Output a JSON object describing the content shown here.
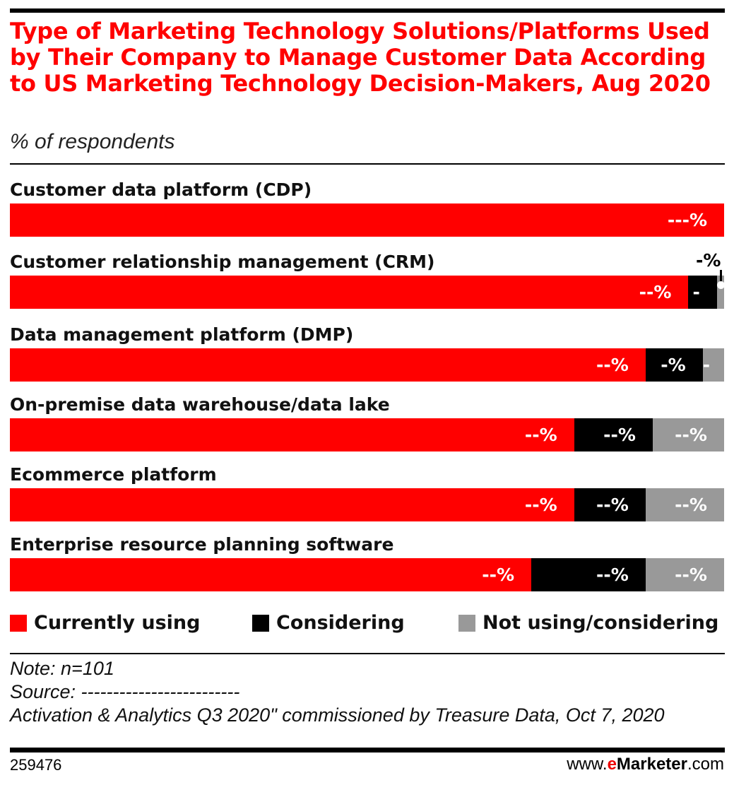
{
  "chart_data": {
    "type": "bar",
    "orientation": "horizontal",
    "stacked": true,
    "title": "Type of Marketing Technology Solutions/Platforms Used by Their Company to Manage Customer Data According to US Marketing Technology Decision-Makers, Aug 2020",
    "subtitle": "% of respondents",
    "categories": [
      "Customer data platform (CDP)",
      "Customer relationship management (CRM)",
      "Data management platform (DMP)",
      "On-premise data warehouse/data lake",
      "Ecommerce platform",
      "Enterprise resource planning software"
    ],
    "xlim": [
      0,
      100
    ],
    "series": [
      {
        "name": "Currently using",
        "color": "#ff0000",
        "values": [
          100,
          95,
          89,
          79,
          79,
          73
        ],
        "labels": [
          "---%",
          "--%",
          "--%",
          "--%",
          "--%",
          "--%"
        ]
      },
      {
        "name": "Considering",
        "color": "#000000",
        "values": [
          0,
          4,
          8,
          11,
          10,
          16
        ],
        "labels": [
          "",
          "-%",
          "-%",
          "--%",
          "--%",
          "--%"
        ]
      },
      {
        "name": "Not using/considering",
        "color": "#999999",
        "values": [
          0,
          1,
          3,
          10,
          11,
          11
        ],
        "labels": [
          "",
          "-%",
          "-%",
          "--%",
          "--%",
          "--%"
        ]
      }
    ],
    "legend_position": "bottom",
    "grid": false
  },
  "footer": {
    "note": "Note: n=101",
    "source": "Source: -------------------------",
    "source_cont": "Activation & Analytics Q3 2020\" commissioned by Treasure Data, Oct 7, 2020",
    "chart_id": "259476",
    "brand_prefix": "www.",
    "brand_e": "e",
    "brand_name": "Marketer",
    "brand_suffix": ".com"
  }
}
